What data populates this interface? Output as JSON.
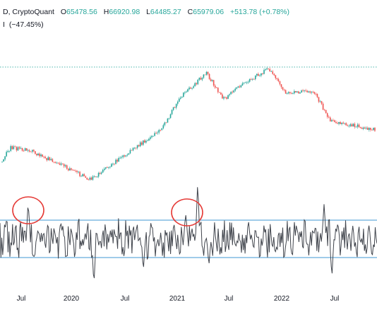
{
  "header": {
    "symbol_text": "D, CryptoQuant",
    "ohlc": [
      {
        "key": "O",
        "value": "65478.56"
      },
      {
        "key": "H",
        "value": "66920.98"
      },
      {
        "key": "L",
        "value": "64485.27"
      },
      {
        "key": "C",
        "value": "65979.06"
      }
    ],
    "change": "+513.78 (+0.78%)",
    "indicator_value": "(−47.45%)"
  },
  "colors": {
    "up": "#26a69a",
    "down": "#ef5350",
    "band": "#9fcbe9",
    "indicator": "#40444c",
    "reference": "#4db6ac",
    "circle": "#e53935",
    "text": "#131722",
    "legend_value": "#26a69a"
  },
  "chart_data": {
    "type": "candlestick",
    "x_axis": {
      "tick_labels": [
        "Jul",
        "2020",
        "Jul",
        "2021",
        "Jul",
        "2022",
        "Jul"
      ],
      "range": [
        "2019-05",
        "2022-11"
      ]
    },
    "annotations": [
      {
        "type": "circle",
        "near": "2019-08",
        "description": "spike circled"
      },
      {
        "type": "circle",
        "near": "2021-02",
        "description": "spike circled"
      },
      {
        "type": "horizontal_line",
        "style": "dotted",
        "near_price": "ATH"
      }
    ],
    "price_shape": [
      {
        "x": "2019-05",
        "y": 8000
      },
      {
        "x": "2019-06",
        "y": 11000
      },
      {
        "x": "2019-08",
        "y": 10500
      },
      {
        "x": "2019-12",
        "y": 7200
      },
      {
        "x": "2020-03",
        "y": 5300
      },
      {
        "x": "2020-07",
        "y": 9500
      },
      {
        "x": "2020-11",
        "y": 17000
      },
      {
        "x": "2021-01",
        "y": 34000
      },
      {
        "x": "2021-04",
        "y": 60000
      },
      {
        "x": "2021-06",
        "y": 33000
      },
      {
        "x": "2021-08",
        "y": 47000
      },
      {
        "x": "2021-11",
        "y": 66000
      },
      {
        "x": "2022-01",
        "y": 38000
      },
      {
        "x": "2022-04",
        "y": 40000
      },
      {
        "x": "2022-06",
        "y": 20000
      },
      {
        "x": "2022-11",
        "y": 16500
      }
    ],
    "indicator": {
      "bands": [
        "upper",
        "lower"
      ]
    }
  }
}
